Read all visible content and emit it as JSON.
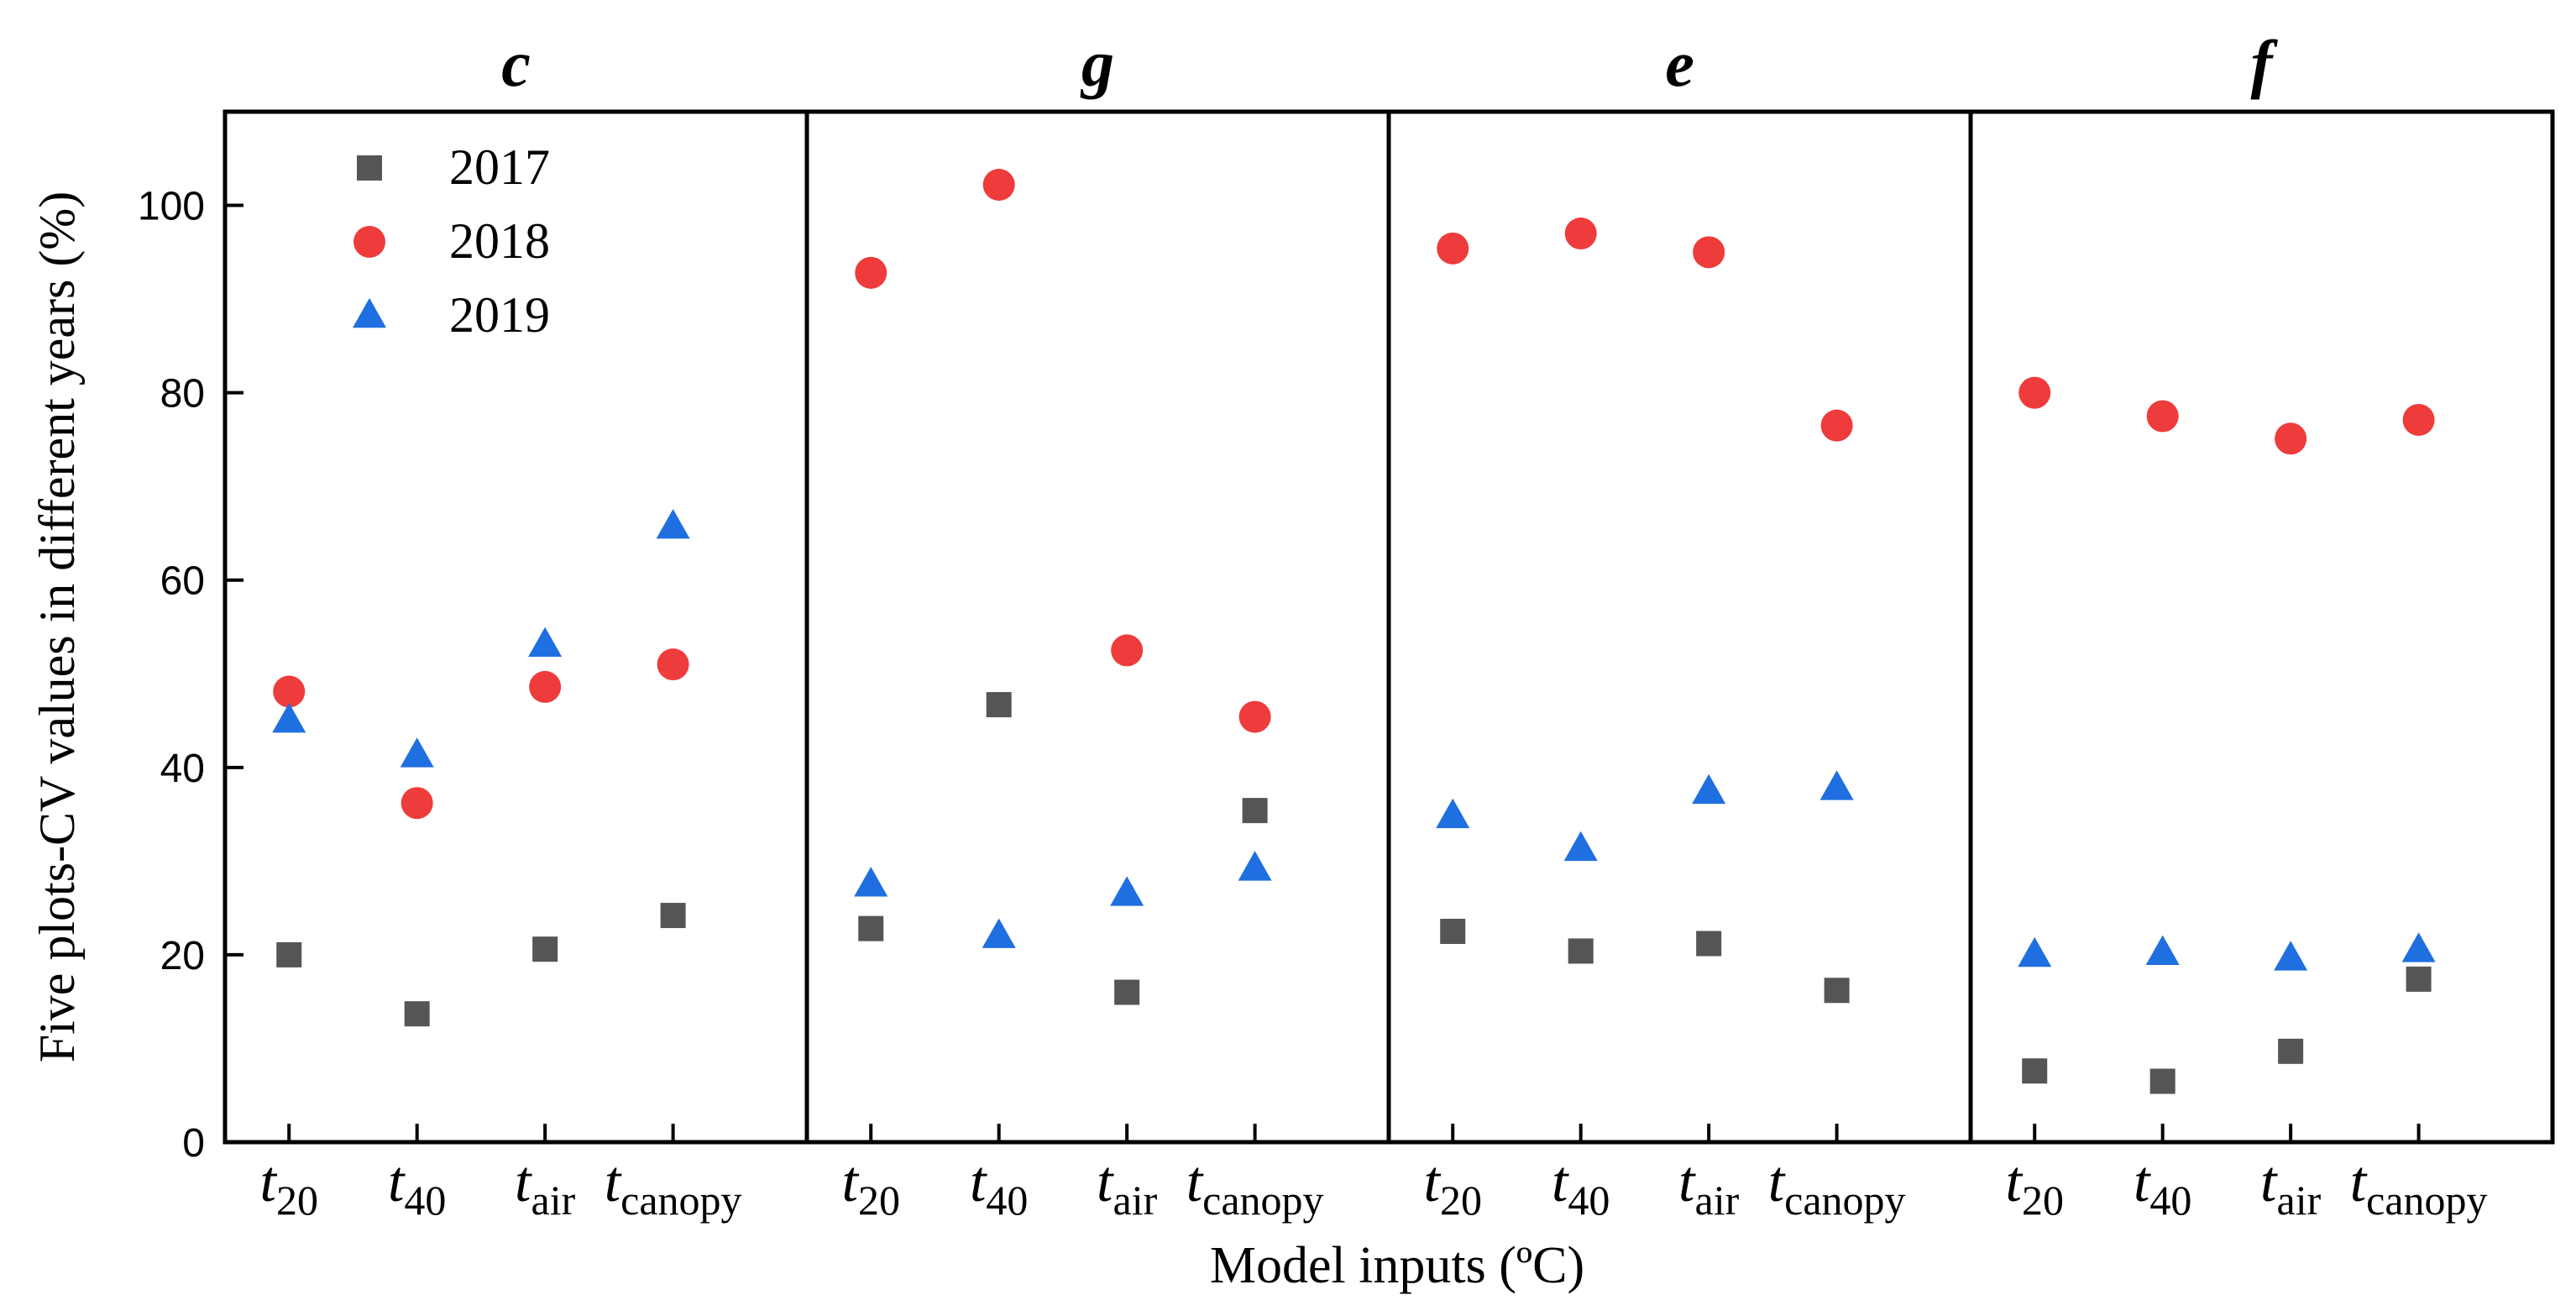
{
  "chart_data": {
    "type": "scatter",
    "ylabel": "Five plots-CV values in different years (%)",
    "xlabel": "Model inputs (ºC)",
    "ylim": [
      0,
      110
    ],
    "yticks": [
      0,
      20,
      40,
      60,
      80,
      100
    ],
    "xticks": [
      {
        "base": "t",
        "sub": "20"
      },
      {
        "base": "t",
        "sub": "40"
      },
      {
        "base": "t",
        "sub": "air"
      },
      {
        "base": "t",
        "sub": "canopy"
      }
    ],
    "legend": {
      "position": "top-left",
      "entries": [
        {
          "label": "2017",
          "marker": "square",
          "color": "#555555"
        },
        {
          "label": "2018",
          "marker": "circle",
          "color": "#ee3b3b"
        },
        {
          "label": "2019",
          "marker": "triangle",
          "color": "#1f6fe0"
        }
      ]
    },
    "panels": [
      {
        "title": "c",
        "series": [
          {
            "name": "2017",
            "values": [
              20.0,
              13.7,
              20.6,
              24.2
            ]
          },
          {
            "name": "2018",
            "values": [
              48.1,
              36.2,
              48.6,
              51.0
            ]
          },
          {
            "name": "2019",
            "values": [
              45.0,
              41.3,
              53.1,
              65.7
            ]
          }
        ]
      },
      {
        "title": "g",
        "series": [
          {
            "name": "2017",
            "values": [
              22.8,
              46.7,
              16.0,
              35.4
            ]
          },
          {
            "name": "2018",
            "values": [
              92.8,
              102.2,
              52.5,
              45.4
            ]
          },
          {
            "name": "2019",
            "values": [
              27.5,
              22.0,
              26.5,
              29.2
            ]
          }
        ]
      },
      {
        "title": "e",
        "series": [
          {
            "name": "2017",
            "values": [
              22.5,
              20.4,
              21.2,
              16.2
            ]
          },
          {
            "name": "2018",
            "values": [
              95.4,
              97.0,
              95.0,
              76.5
            ]
          },
          {
            "name": "2019",
            "values": [
              34.8,
              31.3,
              37.4,
              37.8
            ]
          }
        ]
      },
      {
        "title": "f",
        "series": [
          {
            "name": "2017",
            "values": [
              7.6,
              6.5,
              9.7,
              17.4
            ]
          },
          {
            "name": "2018",
            "values": [
              80.0,
              77.5,
              75.1,
              77.1
            ]
          },
          {
            "name": "2019",
            "values": [
              20.0,
              20.2,
              19.6,
              20.5
            ]
          }
        ]
      }
    ]
  }
}
